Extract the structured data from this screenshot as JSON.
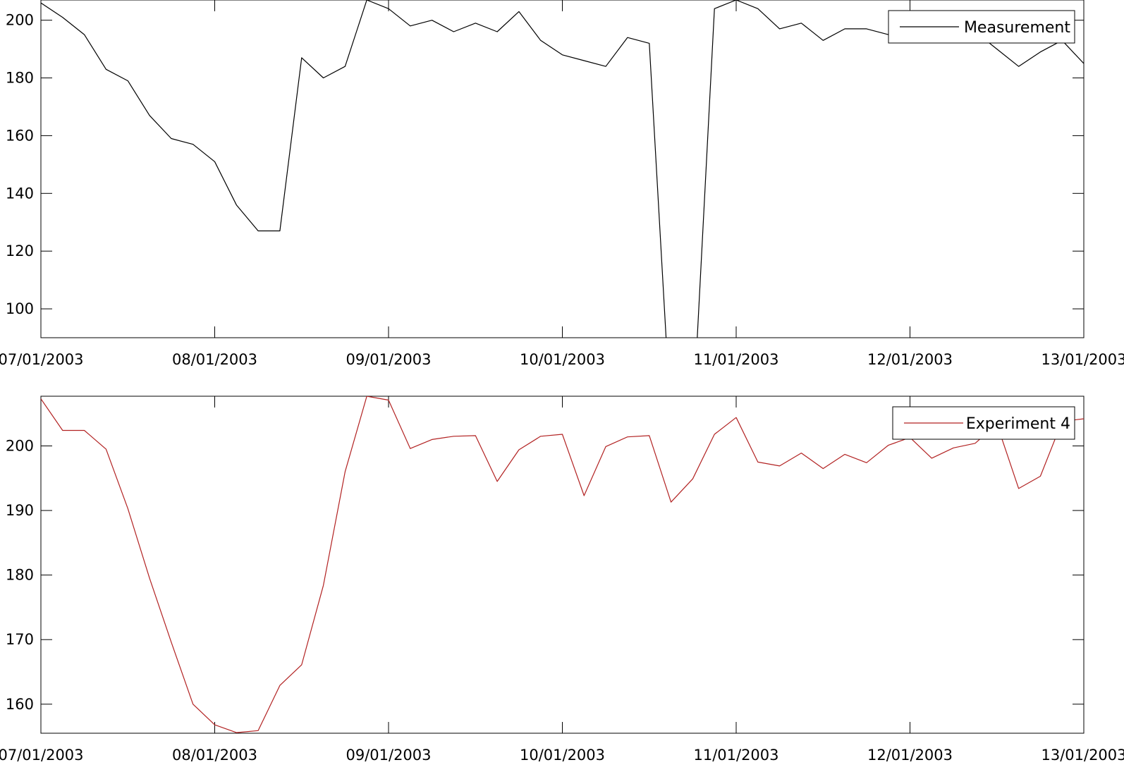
{
  "chart_data": [
    {
      "type": "line",
      "title": "",
      "xlabel": "",
      "ylabel": "",
      "x_ticks": [
        "07/01/2003",
        "08/01/2003",
        "09/01/2003",
        "10/01/2003",
        "11/01/2003",
        "12/01/2003",
        "13/01/2003"
      ],
      "y_ticks": [
        100,
        120,
        140,
        160,
        180,
        200
      ],
      "xlim": [
        "07/01/2003 00:00",
        "13/01/2003 00:00"
      ],
      "ylim": [
        90,
        207
      ],
      "grid": false,
      "legend": "top-right",
      "series": [
        {
          "name": "Measurement",
          "color": "#000000",
          "x": [
            "07/01/2003 00:00",
            "07/01/2003 03:00",
            "07/01/2003 06:00",
            "07/01/2003 09:00",
            "07/01/2003 12:00",
            "07/01/2003 15:00",
            "07/01/2003 18:00",
            "07/01/2003 21:00",
            "08/01/2003 00:00",
            "08/01/2003 03:00",
            "08/01/2003 06:00",
            "08/01/2003 09:00",
            "08/01/2003 12:00",
            "08/01/2003 15:00",
            "08/01/2003 18:00",
            "08/01/2003 21:00",
            "09/01/2003 00:00",
            "09/01/2003 03:00",
            "09/01/2003 06:00",
            "09/01/2003 09:00",
            "09/01/2003 12:00",
            "09/01/2003 15:00",
            "09/01/2003 18:00",
            "09/01/2003 21:00",
            "10/01/2003 00:00",
            "10/01/2003 03:00",
            "10/01/2003 06:00",
            "10/01/2003 09:00",
            "10/01/2003 12:00",
            "10/01/2003 15:00",
            "10/01/2003 18:00",
            "10/01/2003 21:00",
            "11/01/2003 00:00",
            "11/01/2003 03:00",
            "11/01/2003 06:00",
            "11/01/2003 09:00",
            "11/01/2003 12:00",
            "11/01/2003 15:00",
            "11/01/2003 18:00",
            "11/01/2003 21:00",
            "12/01/2003 00:00",
            "12/01/2003 03:00",
            "12/01/2003 06:00",
            "12/01/2003 09:00",
            "12/01/2003 12:00",
            "12/01/2003 15:00",
            "12/01/2003 18:00",
            "12/01/2003 21:00",
            "13/01/2003 00:00"
          ],
          "values": [
            206,
            201,
            195,
            183,
            179,
            167,
            159,
            157,
            151,
            136,
            127,
            127,
            187,
            180,
            184,
            207,
            204,
            198,
            200,
            196,
            199,
            196,
            203,
            193,
            188,
            186,
            184,
            194,
            192,
            60,
            60,
            204,
            207,
            204,
            197,
            199,
            193,
            197,
            197,
            195,
            193,
            196,
            199,
            196,
            190,
            184,
            189,
            193,
            185
          ]
        }
      ]
    },
    {
      "type": "line",
      "title": "",
      "xlabel": "",
      "ylabel": "",
      "x_ticks": [
        "07/01/2003",
        "08/01/2003",
        "09/01/2003",
        "10/01/2003",
        "11/01/2003",
        "12/01/2003",
        "13/01/2003"
      ],
      "y_ticks": [
        160,
        170,
        180,
        190,
        200
      ],
      "xlim": [
        "07/01/2003 00:00",
        "13/01/2003 00:00"
      ],
      "ylim": [
        155.5,
        207.7
      ],
      "grid": false,
      "legend": "top-right",
      "series": [
        {
          "name": "Experiment 4",
          "color": "#b22222",
          "x": [
            "07/01/2003 00:00",
            "07/01/2003 03:00",
            "07/01/2003 06:00",
            "07/01/2003 09:00",
            "07/01/2003 12:00",
            "07/01/2003 15:00",
            "07/01/2003 18:00",
            "07/01/2003 21:00",
            "08/01/2003 00:00",
            "08/01/2003 03:00",
            "08/01/2003 06:00",
            "08/01/2003 09:00",
            "08/01/2003 12:00",
            "08/01/2003 15:00",
            "08/01/2003 18:00",
            "08/01/2003 21:00",
            "09/01/2003 00:00",
            "09/01/2003 03:00",
            "09/01/2003 06:00",
            "09/01/2003 09:00",
            "09/01/2003 12:00",
            "09/01/2003 15:00",
            "09/01/2003 18:00",
            "09/01/2003 21:00",
            "10/01/2003 00:00",
            "10/01/2003 03:00",
            "10/01/2003 06:00",
            "10/01/2003 09:00",
            "10/01/2003 12:00",
            "10/01/2003 15:00",
            "10/01/2003 18:00",
            "10/01/2003 21:00",
            "11/01/2003 00:00",
            "11/01/2003 03:00",
            "11/01/2003 06:00",
            "11/01/2003 09:00",
            "11/01/2003 12:00",
            "11/01/2003 15:00",
            "11/01/2003 18:00",
            "11/01/2003 21:00",
            "12/01/2003 00:00",
            "12/01/2003 03:00",
            "12/01/2003 06:00",
            "12/01/2003 09:00",
            "12/01/2003 12:00",
            "12/01/2003 15:00",
            "12/01/2003 18:00",
            "12/01/2003 21:00",
            "13/01/2003 00:00"
          ],
          "values": [
            207.3,
            202.4,
            202.4,
            199.5,
            190.3,
            179.5,
            169.6,
            160.0,
            156.8,
            155.6,
            155.9,
            162.9,
            166.1,
            178.4,
            196.0,
            207.7,
            207.1,
            199.6,
            201.0,
            201.5,
            201.6,
            194.5,
            199.4,
            201.5,
            201.8,
            192.3,
            199.9,
            201.4,
            201.6,
            191.3,
            194.9,
            201.8,
            204.4,
            197.5,
            196.9,
            198.9,
            196.5,
            198.7,
            197.4,
            200.1,
            201.3,
            198.1,
            199.7,
            200.4,
            203.4,
            193.4,
            195.3,
            203.8,
            204.2
          ]
        }
      ]
    }
  ]
}
